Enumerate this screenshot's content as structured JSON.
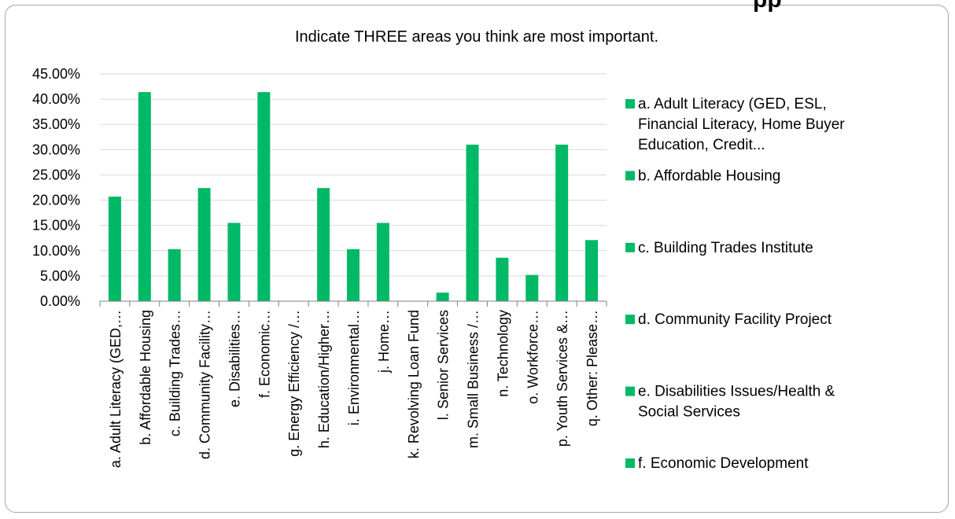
{
  "overflow_text": "pp",
  "chart_data": {
    "type": "bar",
    "title": "Indicate THREE areas you think are most important.",
    "xlabel": "",
    "ylabel": "",
    "ylim": [
      0,
      0.45
    ],
    "y_ticks": [
      0,
      0.05,
      0.1,
      0.15,
      0.2,
      0.25,
      0.3,
      0.35,
      0.4,
      0.45
    ],
    "y_tick_labels": [
      "0.00%",
      "5.00%",
      "10.00%",
      "15.00%",
      "20.00%",
      "25.00%",
      "30.00%",
      "35.00%",
      "40.00%",
      "45.00%"
    ],
    "grid": true,
    "bar_color": "#00b966",
    "categories": [
      "a. Adult Literacy (GED,…",
      "b. Affordable Housing",
      "c. Building Trades…",
      "d. Community Facility…",
      "e. Disabilities…",
      "f. Economic…",
      "g. Energy Efficiency /…",
      "h. Education/Higher…",
      "i. Environmental…",
      "j. Home…",
      "k. Revolving Loan Fund",
      "l. Senior Services",
      "m. Small Business /…",
      "n. Technology",
      "o. Workforce…",
      "p. Youth Services &…",
      "q. Other: Please…"
    ],
    "values": [
      0.207,
      0.414,
      0.103,
      0.224,
      0.155,
      0.414,
      0,
      0.224,
      0.103,
      0.155,
      0,
      0.017,
      0.31,
      0.086,
      0.052,
      0.31,
      0.121
    ],
    "legend_position": "right",
    "legend": [
      [
        "a. Adult Literacy (GED, ESL,",
        "Financial Literacy, Home Buyer",
        "Education, Credit..."
      ],
      [
        "b. Affordable Housing"
      ],
      [
        "c. Building Trades Institute"
      ],
      [
        "d. Community Facility Project"
      ],
      [
        "e. Disabilities Issues/Health &",
        "Social Services"
      ],
      [
        "f. Economic Development"
      ]
    ]
  }
}
